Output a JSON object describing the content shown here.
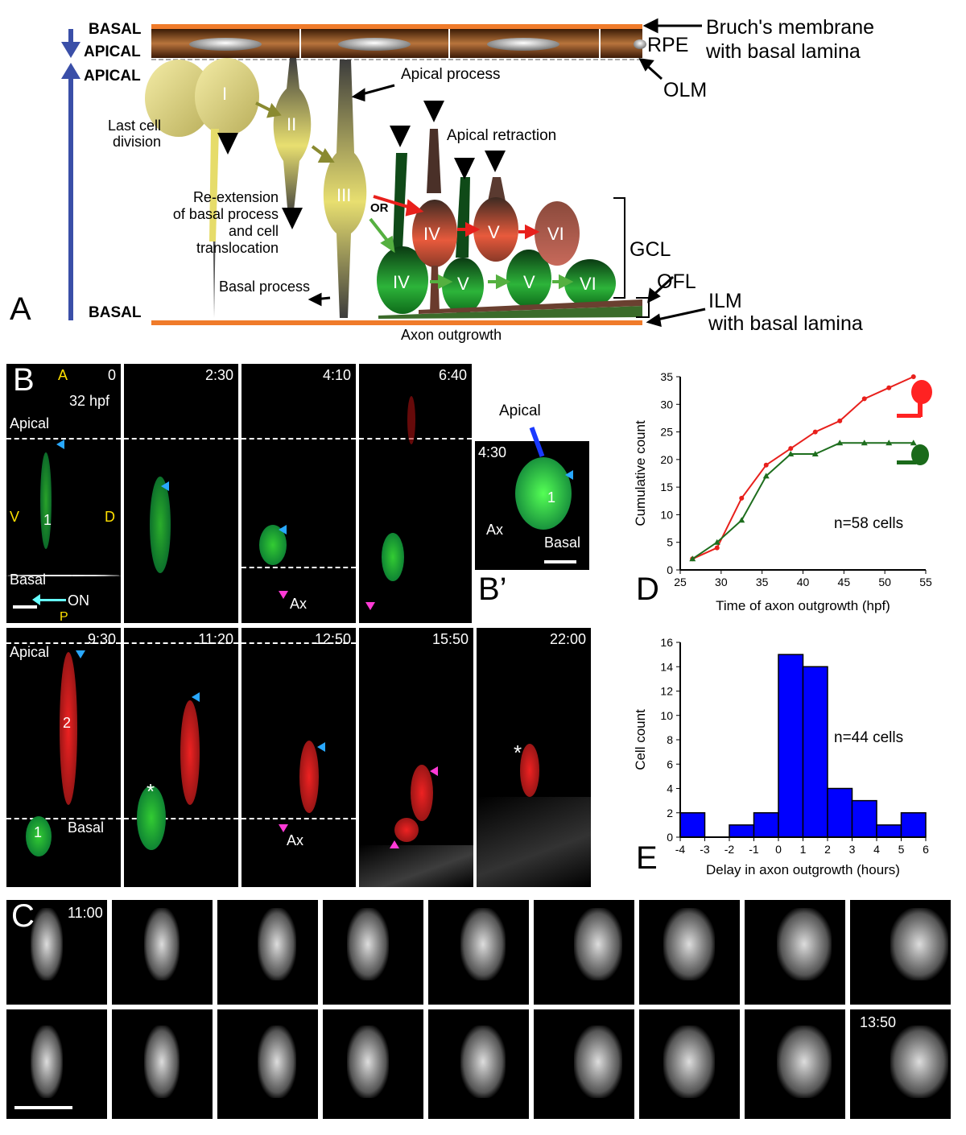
{
  "panelA": {
    "letter": "A",
    "basal_top": "BASAL",
    "apical_top": "APICAL",
    "apical_left": "APICAL",
    "basal_bottom": "BASAL",
    "bruchs": "Bruch's membrane",
    "bruchs2": "with basal lamina",
    "rpe": "RPE",
    "olm": "OLM",
    "apical_process": "Apical process",
    "last_cell_division": "Last cell",
    "last_cell_division2": "division",
    "apical_retraction": "Apical retraction",
    "reextension1": "Re-extension",
    "reextension2": "of basal process",
    "reextension3": "and cell",
    "reextension4": "translocation",
    "or": "OR",
    "basal_process": "Basal process",
    "axon_outgrowth": "Axon outgrowth",
    "gcl": "GCL",
    "ofl": "OFL",
    "ilm": "ILM",
    "ilm2": "with basal lamina",
    "cells": {
      "c1": "I",
      "c2": "II",
      "c3": "III",
      "r4": "IV",
      "r5": "V",
      "r6": "VI",
      "g4": "IV",
      "g5": "V",
      "g5b": "V",
      "g6": "VI"
    }
  },
  "panelB": {
    "letter": "B",
    "bprime": "B’",
    "frames_top": [
      "0",
      "2:30",
      "4:10",
      "6:40"
    ],
    "frames_bottom": [
      "9:30",
      "11:20",
      "12:50",
      "15:50",
      "22:00"
    ],
    "bprime_time": "4:30",
    "axis_A": "A",
    "axis_V": "V",
    "axis_D": "D",
    "axis_P": "P",
    "hpf": "32 hpf",
    "apical": "Apical",
    "basal": "Basal",
    "on": "ON",
    "ax": "Ax",
    "cell1": "1",
    "cell2": "2",
    "star": "*",
    "bprime_apical": "Apical"
  },
  "panelC": {
    "letter": "C",
    "t_start": "11:00",
    "t_end": "13:50"
  },
  "panelD": {
    "letter": "D",
    "annotation": "n=58 cells"
  },
  "panelE": {
    "letter": "E",
    "annotation": "n=44 cells"
  },
  "chart_data": [
    {
      "type": "line",
      "xlabel": "Time of axon outgrowth (hpf)",
      "ylabel": "Cumulative count",
      "xlim": [
        25,
        55
      ],
      "ylim": [
        0,
        35
      ],
      "xticks": [
        25,
        30,
        35,
        40,
        45,
        50,
        55
      ],
      "yticks": [
        0,
        5,
        10,
        15,
        20,
        25,
        30,
        35
      ],
      "series": [
        {
          "color": "#e8201c",
          "x": [
            26.5,
            29.5,
            32.5,
            35.5,
            38.5,
            41.5,
            44.5,
            47.5,
            50.5,
            53.5
          ],
          "values": [
            2,
            4,
            13,
            19,
            22,
            25,
            27,
            31,
            33,
            35
          ]
        },
        {
          "color": "#1e6e1e",
          "x": [
            26.5,
            29.5,
            32.5,
            35.5,
            38.5,
            41.5,
            44.5,
            47.5,
            50.5,
            53.5
          ],
          "values": [
            2,
            5,
            9,
            17,
            21,
            21,
            23,
            23,
            23,
            23
          ]
        }
      ]
    },
    {
      "type": "bar",
      "xlabel": "Delay in axon outgrowth (hours)",
      "ylabel": "Cell count",
      "xlim": [
        -4,
        6
      ],
      "ylim": [
        0,
        16
      ],
      "xticks": [
        -4,
        -3,
        -2,
        -1,
        0,
        1,
        2,
        3,
        4,
        5,
        6
      ],
      "yticks": [
        0,
        2,
        4,
        6,
        8,
        10,
        12,
        14,
        16
      ],
      "bin_edges": [
        -4,
        -3,
        -2,
        -1,
        0,
        1,
        2,
        3,
        4,
        5,
        6
      ],
      "values": [
        2,
        0,
        1,
        2,
        15,
        14,
        4,
        3,
        1,
        2
      ],
      "color": "#0000ff"
    }
  ]
}
